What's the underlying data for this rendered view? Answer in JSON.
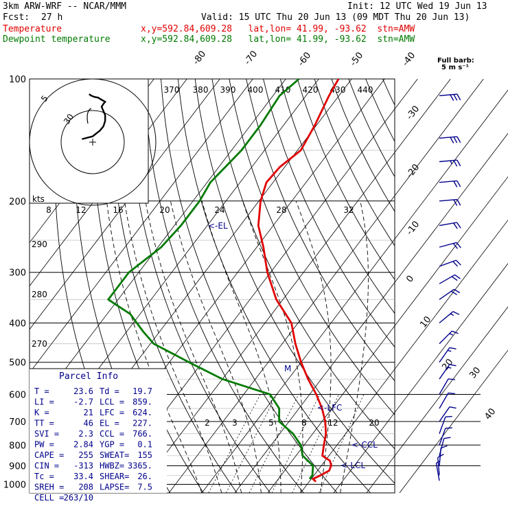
{
  "header": {
    "model": "3km ARW-WRF -- NCAR/MMM",
    "init": "Init: 12 UTC Wed 19 Jun 13",
    "fcst_label": "Fcst:",
    "fcst_value": "27 h",
    "valid": "Valid: 15 UTC Thu 20 Jun 13 (09 MDT Thu 20 Jun 13)",
    "temp_label": "Temperature",
    "temp_loc": "x,y=592.84,609.28   lat,lon= 41.99, -93.62  stn=AMW",
    "dew_label": "Dewpoint temperature",
    "dew_loc": "x,y=592.84,609.28   lat,lon= 41.99, -93.62  stn=AMW",
    "barb_note_1": "Full barb:",
    "barb_note_2": "5 m s⁻¹"
  },
  "hodograph": {
    "units_label": "kts",
    "ring_labels": [
      "5",
      "30"
    ],
    "x_ticks": [
      "8",
      "12",
      "16",
      "20",
      "24",
      "28",
      "32"
    ]
  },
  "parcel_info": {
    "title": "Parcel Info",
    "rows": [
      [
        "T =",
        "23.6",
        "Td =",
        "19.7"
      ],
      [
        "LI =",
        "-2.7",
        "LCL =",
        "859."
      ],
      [
        "K =",
        "21",
        "LFC =",
        "624."
      ],
      [
        "TT =",
        "46",
        "EL =",
        "227."
      ],
      [
        "SVI =",
        "2.3",
        "CCL =",
        "766."
      ],
      [
        "PW =",
        "2.84",
        "YGP =",
        "0.1"
      ],
      [
        "CAPE =",
        "255",
        "SWEAT=",
        "155"
      ],
      [
        "CIN =",
        "-313",
        "HWBZ=",
        "3365."
      ],
      [
        "Tc =",
        "33.4",
        "SHEAR=",
        "26."
      ],
      [
        "SREH =",
        "208",
        "LAPSE=",
        "7.5"
      ],
      [
        "CELL =",
        "263/10",
        "",
        ""
      ]
    ]
  },
  "chart_data": {
    "type": "skew-t",
    "yaxis": "pressure (hPa)",
    "pressure_levels": [
      100,
      200,
      300,
      400,
      500,
      600,
      700,
      800,
      900,
      1000
    ],
    "isotherm_labels": [
      "-80",
      "-70",
      "-60",
      "-50",
      "-40",
      "-30",
      "-20",
      "-10",
      "0",
      "10",
      "20",
      "30",
      "40"
    ],
    "theta_labels": [
      "370",
      "380",
      "390",
      "400",
      "410",
      "420",
      "430",
      "440"
    ],
    "left_theta_labels": [
      "290",
      "280",
      "270"
    ],
    "mixing_ratio_labels": [
      "2",
      "3",
      "5",
      "8",
      "12",
      "20"
    ],
    "markers": [
      "<-EL",
      "<-LFC",
      "<-CCL",
      "<-LCL",
      "M"
    ],
    "series": [
      {
        "name": "Temperature",
        "color": "#e00000",
        "points": [
          [
            100,
            -64
          ],
          [
            110,
            -63
          ],
          [
            130,
            -60.5
          ],
          [
            150,
            -59
          ],
          [
            165,
            -61.5
          ],
          [
            180,
            -62
          ],
          [
            200,
            -59.5
          ],
          [
            230,
            -54.5
          ],
          [
            260,
            -48
          ],
          [
            300,
            -41
          ],
          [
            350,
            -32
          ],
          [
            400,
            -22
          ],
          [
            450,
            -16
          ],
          [
            500,
            -10
          ],
          [
            550,
            -4
          ],
          [
            600,
            2
          ],
          [
            650,
            7
          ],
          [
            700,
            11
          ],
          [
            750,
            14
          ],
          [
            800,
            16
          ],
          [
            850,
            18
          ],
          [
            875,
            21.5
          ],
          [
            900,
            23
          ],
          [
            925,
            23.5
          ],
          [
            950,
            22
          ],
          [
            970,
            20.5
          ],
          [
            985,
            22
          ]
        ]
      },
      {
        "name": "Dewpoint temperature",
        "color": "#007a00",
        "points": [
          [
            100,
            -76
          ],
          [
            110,
            -78
          ],
          [
            130,
            -77
          ],
          [
            150,
            -77
          ],
          [
            180,
            -79
          ],
          [
            200,
            -78
          ],
          [
            230,
            -78
          ],
          [
            260,
            -79
          ],
          [
            300,
            -83
          ],
          [
            350,
            -83
          ],
          [
            380,
            -73
          ],
          [
            420,
            -65
          ],
          [
            450,
            -59
          ],
          [
            500,
            -44
          ],
          [
            550,
            -30
          ],
          [
            600,
            -12
          ],
          [
            650,
            -6
          ],
          [
            700,
            -3
          ],
          [
            750,
            4
          ],
          [
            800,
            9
          ],
          [
            850,
            12
          ],
          [
            900,
            17.5
          ],
          [
            925,
            18.5
          ],
          [
            950,
            19.5
          ],
          [
            970,
            19.5
          ]
        ]
      }
    ],
    "wind_barbs_kt": [
      [
        110,
        265,
        30
      ],
      [
        140,
        265,
        30
      ],
      [
        160,
        265,
        25
      ],
      [
        180,
        265,
        20
      ],
      [
        200,
        265,
        20
      ],
      [
        230,
        260,
        20
      ],
      [
        260,
        255,
        20
      ],
      [
        290,
        250,
        20
      ],
      [
        320,
        240,
        20
      ],
      [
        350,
        235,
        20
      ],
      [
        400,
        230,
        15
      ],
      [
        450,
        225,
        15
      ],
      [
        500,
        215,
        15
      ],
      [
        550,
        215,
        15
      ],
      [
        600,
        210,
        10
      ],
      [
        650,
        210,
        10
      ],
      [
        700,
        215,
        10
      ],
      [
        750,
        200,
        10
      ],
      [
        800,
        200,
        10
      ],
      [
        850,
        195,
        10
      ],
      [
        900,
        185,
        10
      ],
      [
        950,
        175,
        10
      ],
      [
        980,
        170,
        5
      ]
    ],
    "hodograph_uv_kt": [
      [
        -1,
        1
      ],
      [
        -0.5,
        2
      ],
      [
        0.5,
        3
      ],
      [
        1.5,
        3.5
      ],
      [
        2.5,
        5
      ],
      [
        3.5,
        6.5
      ],
      [
        3,
        8
      ],
      [
        2.5,
        10
      ],
      [
        3,
        13
      ],
      [
        3.5,
        16
      ],
      [
        3.5,
        20
      ],
      [
        3,
        24
      ],
      [
        2,
        27
      ],
      [
        1,
        29
      ],
      [
        0,
        31
      ],
      [
        -1.5,
        32
      ],
      [
        -3,
        33
      ]
    ]
  }
}
